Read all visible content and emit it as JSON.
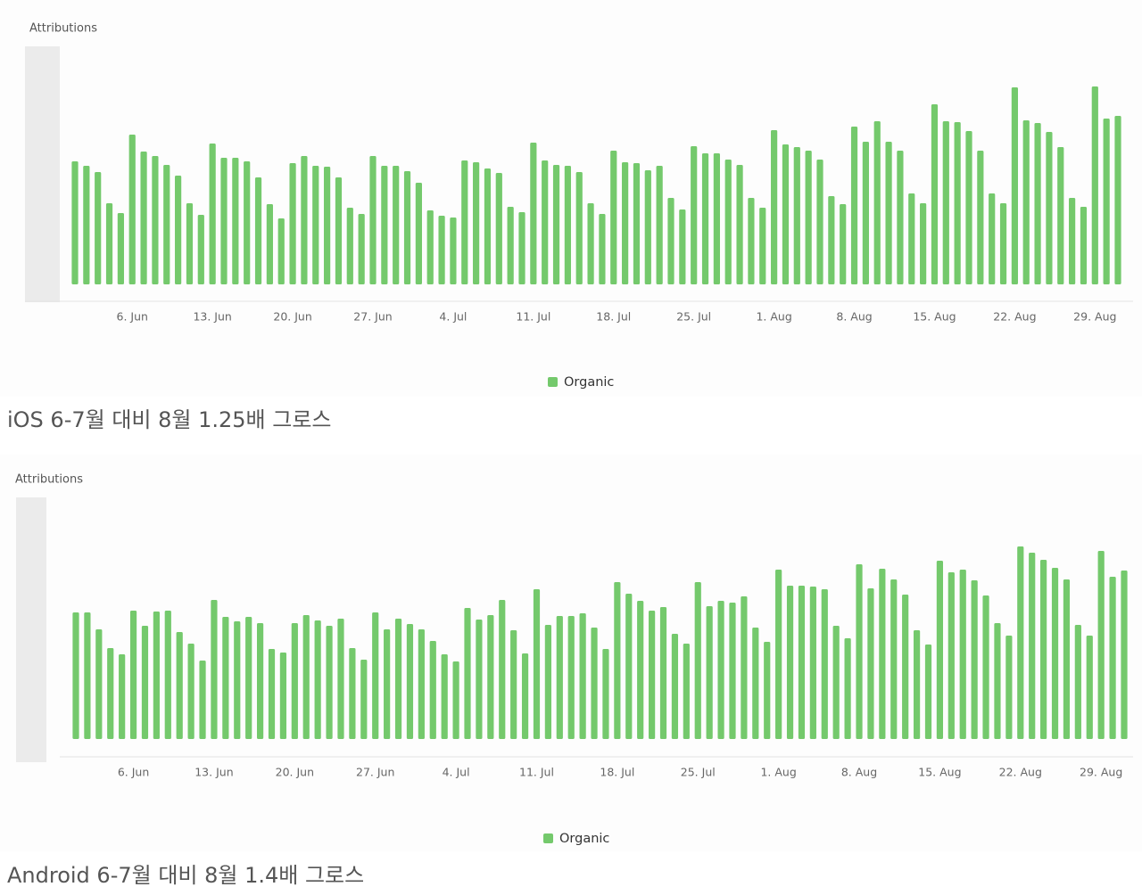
{
  "chart_data": [
    {
      "type": "bar",
      "ylabel": "Attributions",
      "caption": "iOS 6-7월 대비 8월 1.25배 그로스",
      "categories": [
        null,
        null,
        null,
        null,
        null,
        "6. Jun",
        null,
        null,
        null,
        null,
        null,
        null,
        "13. Jun",
        null,
        null,
        null,
        null,
        null,
        null,
        "20. Jun",
        null,
        null,
        null,
        null,
        null,
        null,
        "27. Jun",
        null,
        null,
        null,
        null,
        null,
        null,
        "4. Jul",
        null,
        null,
        null,
        null,
        null,
        null,
        "11. Jul",
        null,
        null,
        null,
        null,
        null,
        null,
        "18. Jul",
        null,
        null,
        null,
        null,
        null,
        null,
        "25. Jul",
        null,
        null,
        null,
        null,
        null,
        null,
        "1. Aug",
        null,
        null,
        null,
        null,
        null,
        null,
        "8. Aug",
        null,
        null,
        null,
        null,
        null,
        null,
        "15. Aug",
        null,
        null,
        null,
        null,
        null,
        null,
        "22. Aug",
        null,
        null,
        null,
        null,
        null,
        null,
        "29. Aug",
        null,
        null
      ],
      "series": [
        {
          "name": "Organic",
          "color": "#74c96c",
          "values": [
            138,
            133,
            126,
            91,
            80,
            168,
            149,
            144,
            134,
            122,
            91,
            78,
            158,
            142,
            142,
            138,
            120,
            90,
            74,
            136,
            144,
            133,
            132,
            120,
            86,
            79,
            144,
            133,
            133,
            127,
            114,
            83,
            77,
            75,
            139,
            137,
            130,
            125,
            87,
            81,
            159,
            139,
            134,
            133,
            126,
            91,
            79,
            150,
            137,
            136,
            128,
            133,
            97,
            84,
            155,
            147,
            147,
            140,
            134,
            97,
            86,
            173,
            157,
            154,
            150,
            140,
            99,
            90,
            177,
            160,
            183,
            160,
            150,
            102,
            91,
            202,
            183,
            182,
            172,
            150,
            102,
            91,
            221,
            184,
            181,
            171,
            154,
            97,
            87,
            222,
            186,
            189
          ]
        }
      ],
      "ylim": [
        0,
        267
      ]
    },
    {
      "type": "bar",
      "ylabel": "Attributions",
      "caption": "Android 6-7월 대비 8월 1.4배 그로스",
      "categories": [
        null,
        null,
        null,
        null,
        null,
        "6. Jun",
        null,
        null,
        null,
        null,
        null,
        null,
        "13. Jun",
        null,
        null,
        null,
        null,
        null,
        null,
        "20. Jun",
        null,
        null,
        null,
        null,
        null,
        null,
        "27. Jun",
        null,
        null,
        null,
        null,
        null,
        null,
        "4. Jul",
        null,
        null,
        null,
        null,
        null,
        null,
        "11. Jul",
        null,
        null,
        null,
        null,
        null,
        null,
        "18. Jul",
        null,
        null,
        null,
        null,
        null,
        null,
        "25. Jul",
        null,
        null,
        null,
        null,
        null,
        null,
        "1. Aug",
        null,
        null,
        null,
        null,
        null,
        null,
        "8. Aug",
        null,
        null,
        null,
        null,
        null,
        null,
        "15. Aug",
        null,
        null,
        null,
        null,
        null,
        null,
        "22. Aug",
        null,
        null,
        null,
        null,
        null,
        null,
        "29. Aug",
        null,
        null
      ],
      "series": [
        {
          "name": "Organic",
          "color": "#74c96c",
          "values": [
            142,
            142,
            123,
            102,
            95,
            144,
            127,
            143,
            144,
            120,
            107,
            88,
            156,
            137,
            132,
            137,
            130,
            101,
            97,
            130,
            139,
            133,
            127,
            135,
            102,
            89,
            142,
            123,
            135,
            129,
            123,
            110,
            95,
            87,
            147,
            134,
            139,
            156,
            122,
            96,
            168,
            128,
            138,
            138,
            141,
            125,
            101,
            176,
            163,
            155,
            144,
            148,
            118,
            107,
            176,
            149,
            155,
            153,
            160,
            125,
            109,
            190,
            172,
            172,
            171,
            168,
            127,
            113,
            196,
            169,
            191,
            179,
            162,
            122,
            106,
            200,
            187,
            190,
            178,
            161,
            130,
            116,
            216,
            209,
            201,
            192,
            179,
            128,
            116,
            211,
            182,
            189
          ]
        }
      ],
      "ylim": [
        0,
        271
      ]
    }
  ]
}
